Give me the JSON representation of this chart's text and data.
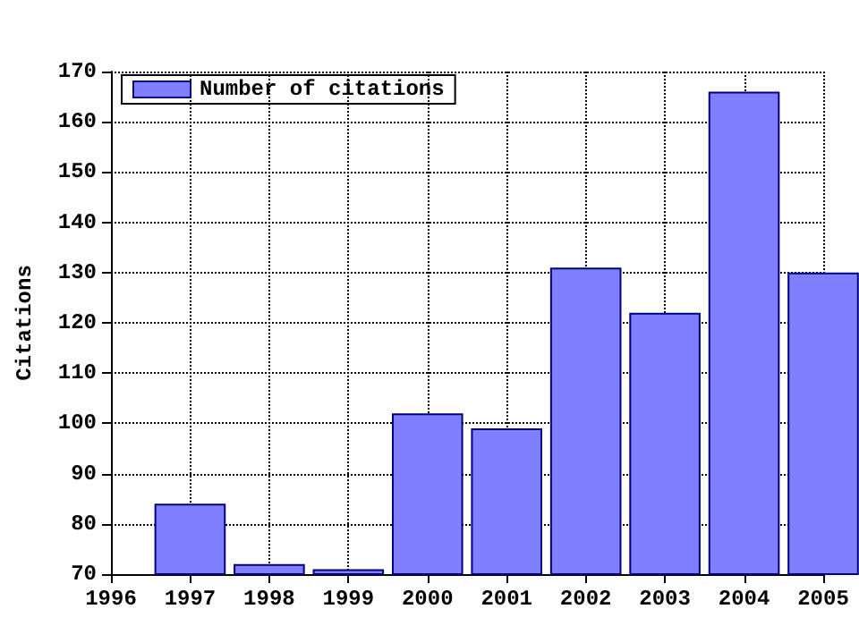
{
  "chart_data": {
    "type": "bar",
    "ylabel": "Citations",
    "x": [
      1997,
      1998,
      1999,
      2000,
      2001,
      2002,
      2003,
      2004,
      2005
    ],
    "series": [
      {
        "name": "Number of citations",
        "color": "#7f7fff",
        "values": [
          84,
          72,
          71,
          102,
          99,
          131,
          122,
          166,
          130
        ]
      }
    ],
    "xlim": [
      1996,
      2005
    ],
    "xticks": [
      1996,
      1997,
      1998,
      1999,
      2000,
      2001,
      2002,
      2003,
      2004,
      2005
    ],
    "ylim": [
      70,
      170
    ],
    "yticks": [
      70,
      80,
      90,
      100,
      110,
      120,
      130,
      140,
      150,
      160,
      170
    ],
    "grid": true,
    "legend": "top left"
  }
}
